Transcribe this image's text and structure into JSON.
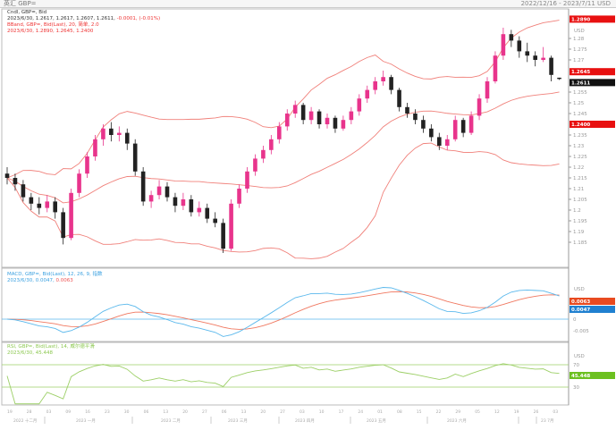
{
  "header": {
    "title": "英汇 GBP=",
    "range": "2022/12/16 - 2023/7/11 USD"
  },
  "legend": {
    "candle_title": "Cndl, GBP=, Bid",
    "candle_values": "2023/6/30, 1.2617, 1.2617, 1.2607, 1.2611,",
    "candle_change": "-0.0001, (-0.01%)",
    "bband_title": "BBand, GBP=, Bid(Last), 20, 简单, 2.0",
    "bband_values": "2023/6/30, 1.2890, 1.2645, 1.2400",
    "macd_title": "MACD, GBP=, Bid(Last), 12, 26, 9, 指数",
    "macd_value": "2023/6/30, 0.0047,",
    "macd_signal": "0.0063",
    "rsi_title": "RSI, GBP=, Bid(Last), 14, 威尔德平滑",
    "rsi_value": "2023/6/30, 45.448"
  },
  "axis": {
    "currency": "USD",
    "price_ticks": [
      "1.28",
      "1.275",
      "1.27",
      "1.255",
      "1.25",
      "1.245",
      "1.235",
      "1.23",
      "1.225",
      "1.22",
      "1.215",
      "1.21",
      "1.205",
      "1.2",
      "1.195",
      "1.19",
      "1.185"
    ],
    "bb_upper": "1.2890",
    "bb_mid": "1.2645",
    "bb_lower": "1.2400",
    "last": "1.2611",
    "macd_ticks": [
      "0",
      "-0.005"
    ],
    "macd_value": "0.0047",
    "macd_signal": "0.0063",
    "rsi_ticks": [
      "70",
      "30"
    ],
    "rsi_value": "45.448",
    "date_ticks": [
      "19",
      "28",
      "03",
      "09",
      "16",
      "23",
      "30",
      "06",
      "13",
      "20",
      "27",
      "06",
      "13",
      "20",
      "27",
      "03",
      "10",
      "17",
      "24",
      "01",
      "08",
      "15",
      "22",
      "29",
      "05",
      "12",
      "19",
      "26",
      "03"
    ],
    "months": [
      "2022 十二月",
      "2023 一月",
      "2023 二月",
      "2023 三月",
      "2023 四月",
      "2023 五月",
      "2023 六月",
      "23 7月"
    ]
  },
  "colors": {
    "bull": "#e8348c",
    "bear": "#222222",
    "bband": "#f0807a",
    "macd": "#5ab8ec",
    "signal": "#f07860",
    "rsi": "#9ccf66",
    "rsi_levels": "#9ccf66",
    "zero": "#5ab8ec"
  },
  "chart_data": {
    "type": "candlestick",
    "indicators": [
      "Bollinger(20,2)",
      "MACD(12,26,9)",
      "RSI(14)"
    ],
    "ylim": [
      1.174,
      1.295
    ],
    "candles": [
      [
        1.217,
        1.22,
        1.212,
        1.215
      ],
      [
        1.215,
        1.217,
        1.209,
        1.212
      ],
      [
        1.212,
        1.214,
        1.204,
        1.206
      ],
      [
        1.206,
        1.208,
        1.2,
        1.203
      ],
      [
        1.203,
        1.206,
        1.198,
        1.201
      ],
      [
        1.201,
        1.207,
        1.199,
        1.204
      ],
      [
        1.204,
        1.206,
        1.196,
        1.199
      ],
      [
        1.199,
        1.201,
        1.184,
        1.187
      ],
      [
        1.187,
        1.21,
        1.186,
        1.208
      ],
      [
        1.208,
        1.219,
        1.206,
        1.217
      ],
      [
        1.217,
        1.227,
        1.215,
        1.225
      ],
      [
        1.225,
        1.235,
        1.223,
        1.233
      ],
      [
        1.233,
        1.24,
        1.23,
        1.238
      ],
      [
        1.238,
        1.241,
        1.232,
        1.235
      ],
      [
        1.235,
        1.239,
        1.232,
        1.236
      ],
      [
        1.236,
        1.238,
        1.228,
        1.231
      ],
      [
        1.231,
        1.233,
        1.216,
        1.218
      ],
      [
        1.218,
        1.22,
        1.202,
        1.204
      ],
      [
        1.204,
        1.209,
        1.201,
        1.207
      ],
      [
        1.207,
        1.214,
        1.205,
        1.211
      ],
      [
        1.211,
        1.213,
        1.204,
        1.206
      ],
      [
        1.206,
        1.208,
        1.199,
        1.202
      ],
      [
        1.202,
        1.208,
        1.2,
        1.205
      ],
      [
        1.205,
        1.207,
        1.197,
        1.199
      ],
      [
        1.199,
        1.204,
        1.197,
        1.201
      ],
      [
        1.201,
        1.203,
        1.194,
        1.196
      ],
      [
        1.196,
        1.199,
        1.192,
        1.194
      ],
      [
        1.194,
        1.196,
        1.18,
        1.182
      ],
      [
        1.182,
        1.205,
        1.181,
        1.203
      ],
      [
        1.203,
        1.212,
        1.201,
        1.21
      ],
      [
        1.21,
        1.22,
        1.208,
        1.218
      ],
      [
        1.218,
        1.226,
        1.216,
        1.224
      ],
      [
        1.224,
        1.23,
        1.222,
        1.228
      ],
      [
        1.228,
        1.235,
        1.226,
        1.233
      ],
      [
        1.233,
        1.241,
        1.231,
        1.239
      ],
      [
        1.239,
        1.247,
        1.237,
        1.245
      ],
      [
        1.245,
        1.251,
        1.243,
        1.249
      ],
      [
        1.249,
        1.25,
        1.24,
        1.242
      ],
      [
        1.242,
        1.248,
        1.24,
        1.246
      ],
      [
        1.246,
        1.247,
        1.238,
        1.24
      ],
      [
        1.24,
        1.245,
        1.238,
        1.243
      ],
      [
        1.243,
        1.244,
        1.236,
        1.238
      ],
      [
        1.238,
        1.244,
        1.237,
        1.242
      ],
      [
        1.242,
        1.248,
        1.24,
        1.246
      ],
      [
        1.246,
        1.254,
        1.244,
        1.252
      ],
      [
        1.252,
        1.258,
        1.25,
        1.256
      ],
      [
        1.256,
        1.262,
        1.254,
        1.26
      ],
      [
        1.26,
        1.265,
        1.258,
        1.262
      ],
      [
        1.262,
        1.263,
        1.254,
        1.256
      ],
      [
        1.256,
        1.257,
        1.246,
        1.248
      ],
      [
        1.248,
        1.25,
        1.243,
        1.245
      ],
      [
        1.245,
        1.247,
        1.24,
        1.242
      ],
      [
        1.242,
        1.244,
        1.236,
        1.238
      ],
      [
        1.238,
        1.24,
        1.232,
        1.234
      ],
      [
        1.234,
        1.236,
        1.228,
        1.23
      ],
      [
        1.23,
        1.235,
        1.228,
        1.233
      ],
      [
        1.233,
        1.244,
        1.232,
        1.242
      ],
      [
        1.242,
        1.243,
        1.234,
        1.236
      ],
      [
        1.236,
        1.246,
        1.235,
        1.244
      ],
      [
        1.244,
        1.254,
        1.242,
        1.252
      ],
      [
        1.252,
        1.262,
        1.25,
        1.26
      ],
      [
        1.26,
        1.274,
        1.259,
        1.272
      ],
      [
        1.272,
        1.285,
        1.27,
        1.282
      ],
      [
        1.282,
        1.284,
        1.276,
        1.279
      ],
      [
        1.279,
        1.281,
        1.271,
        1.274
      ],
      [
        1.274,
        1.278,
        1.269,
        1.272
      ],
      [
        1.272,
        1.274,
        1.267,
        1.27
      ],
      [
        1.27,
        1.276,
        1.269,
        1.271
      ],
      [
        1.271,
        1.272,
        1.26,
        1.263
      ],
      [
        1.2617,
        1.2617,
        1.2607,
        1.2611
      ]
    ]
  }
}
